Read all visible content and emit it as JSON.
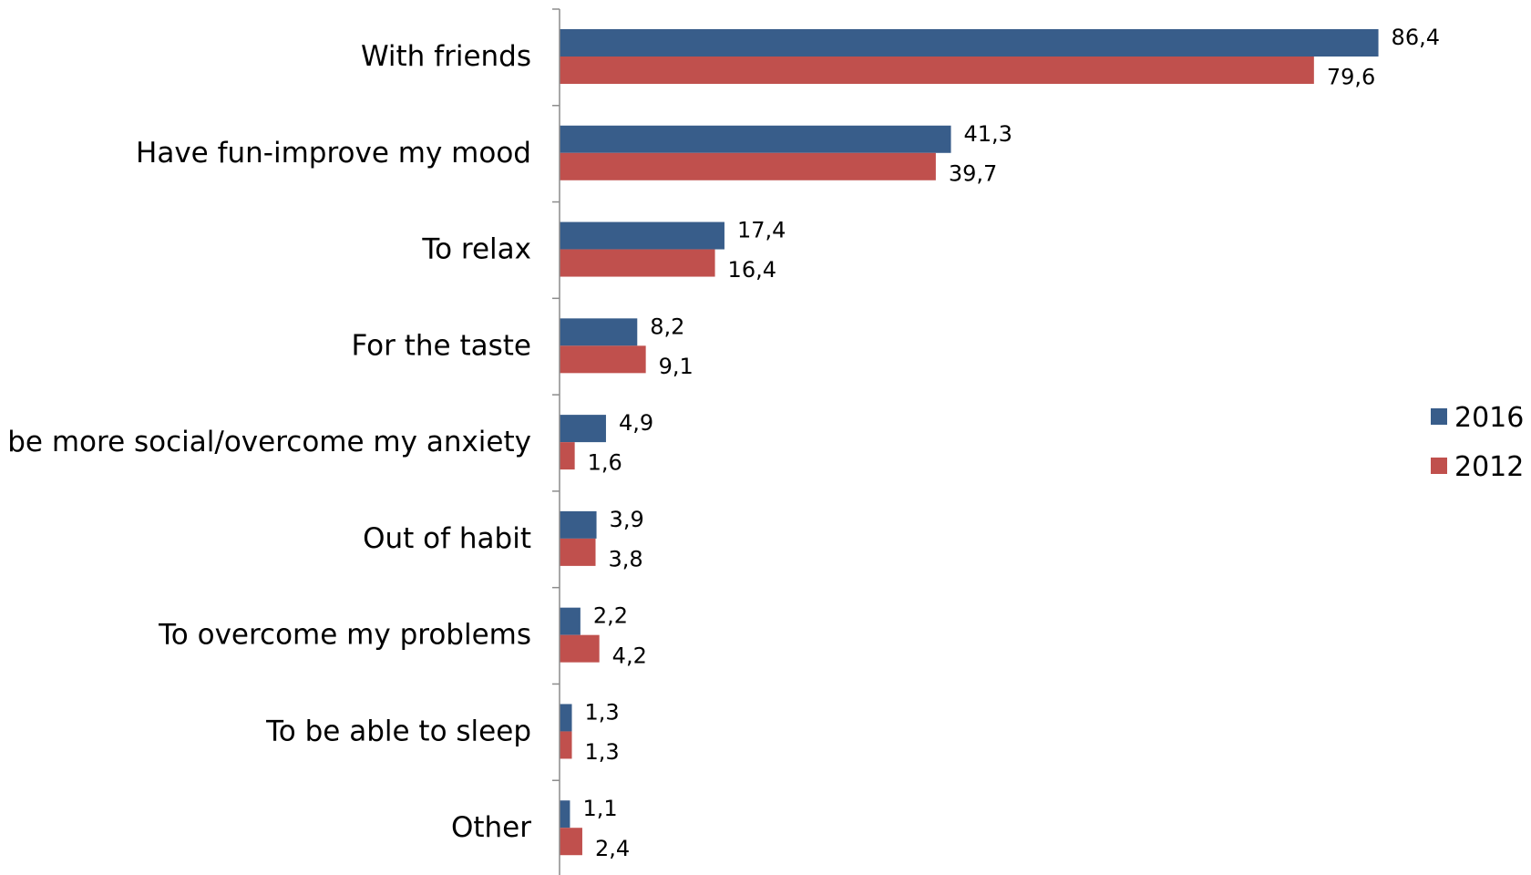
{
  "chart_data": {
    "type": "bar",
    "orientation": "horizontal",
    "categories": [
      "With friends",
      "Have fun-improve my mood",
      "To relax",
      "For the taste",
      "To be more social/overcome my anxiety",
      "Out of habit",
      "To overcome my problems",
      "To be able to sleep",
      "Other"
    ],
    "series": [
      {
        "name": "2016",
        "color": "#385D8A",
        "values": [
          86.4,
          41.3,
          17.4,
          8.2,
          4.9,
          3.9,
          2.2,
          1.3,
          1.1
        ],
        "labels": [
          "86,4",
          "41,3",
          "17,4",
          "8,2",
          "4,9",
          "3,9",
          "2,2",
          "1,3",
          "1,1"
        ]
      },
      {
        "name": "2012",
        "color": "#C0504D",
        "values": [
          79.6,
          39.7,
          16.4,
          9.1,
          1.6,
          3.8,
          4.2,
          1.3,
          2.4
        ],
        "labels": [
          "79,6",
          "39,7",
          "16,4",
          "9,1",
          "1,6",
          "3,8",
          "4,2",
          "1,3",
          "2,4"
        ]
      }
    ],
    "title": "",
    "xlabel": "",
    "ylabel": "",
    "xlim": [
      0,
      90
    ],
    "grid": false,
    "legend_position": "right"
  }
}
